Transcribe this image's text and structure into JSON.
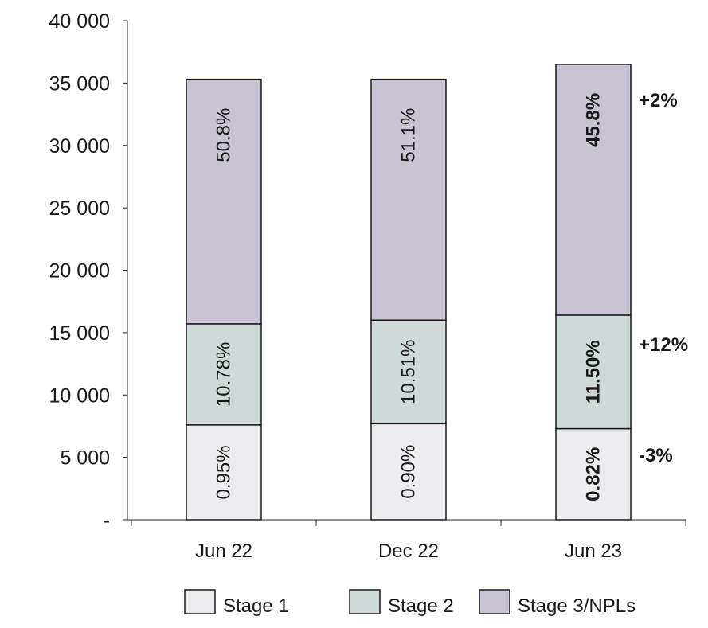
{
  "chart_data": {
    "type": "bar",
    "stacked": true,
    "categories": [
      "Jun 22",
      "Dec 22",
      "Jun 23"
    ],
    "ylim": [
      0,
      40000
    ],
    "yticks": [
      0,
      5000,
      10000,
      15000,
      20000,
      25000,
      30000,
      35000,
      40000
    ],
    "ytick_labels": [
      "-",
      "5 000",
      "10 000",
      "15 000",
      "20 000",
      "25 000",
      "30 000",
      "35 000",
      "40 000"
    ],
    "grid": false,
    "legend_position": "bottom",
    "series": [
      {
        "name": "Stage 1",
        "color": "#ececee",
        "values": [
          7600,
          7700,
          7300
        ],
        "labels": [
          "0.95%",
          "0.90%",
          "0.82%"
        ]
      },
      {
        "name": "Stage 2",
        "color": "#cfd9d7",
        "values": [
          8100,
          8300,
          9100
        ],
        "labels": [
          "10.78%",
          "10.51%",
          "11.50%"
        ]
      },
      {
        "name": "Stage 3/NPLs",
        "color": "#c9c4d3",
        "values": [
          19600,
          19300,
          20100
        ],
        "labels": [
          "50.8%",
          "51.1%",
          "45.8%"
        ]
      }
    ],
    "bold_label_category": "Jun 23",
    "change_annotations": [
      "-3%",
      "+12%",
      "+2%"
    ]
  }
}
